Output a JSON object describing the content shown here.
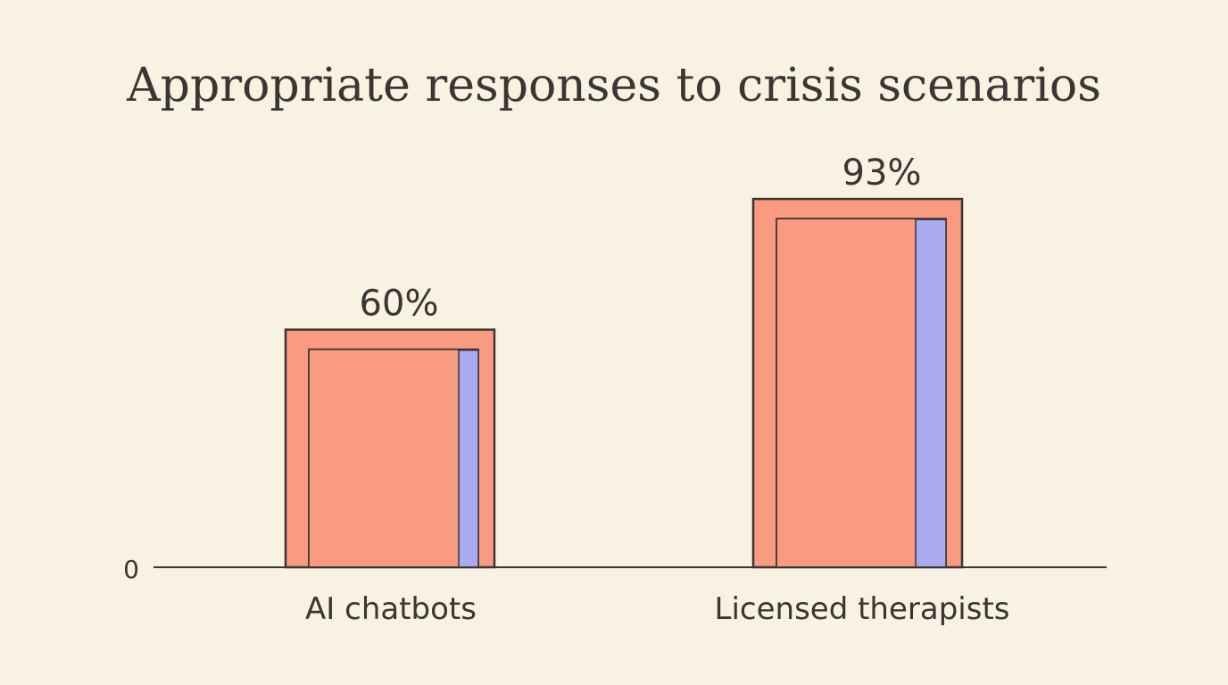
{
  "chart_data": {
    "type": "bar",
    "title": "Appropriate responses to crisis scenarios",
    "xlabel": "",
    "ylabel": "",
    "categories": [
      "AI chatbots",
      "Licensed therapists"
    ],
    "values": [
      60,
      93
    ],
    "value_labels": [
      "60%",
      "93%"
    ],
    "y_ticks": [
      "0"
    ],
    "ylim": [
      0,
      100
    ],
    "grid": false,
    "legend": "none"
  },
  "colors": {
    "background": "#f8f2e2",
    "bar_fill": "#fa9a80",
    "bar_accent": "#a9aaf0",
    "outline": "#3b3534",
    "text": "#3b3534"
  }
}
